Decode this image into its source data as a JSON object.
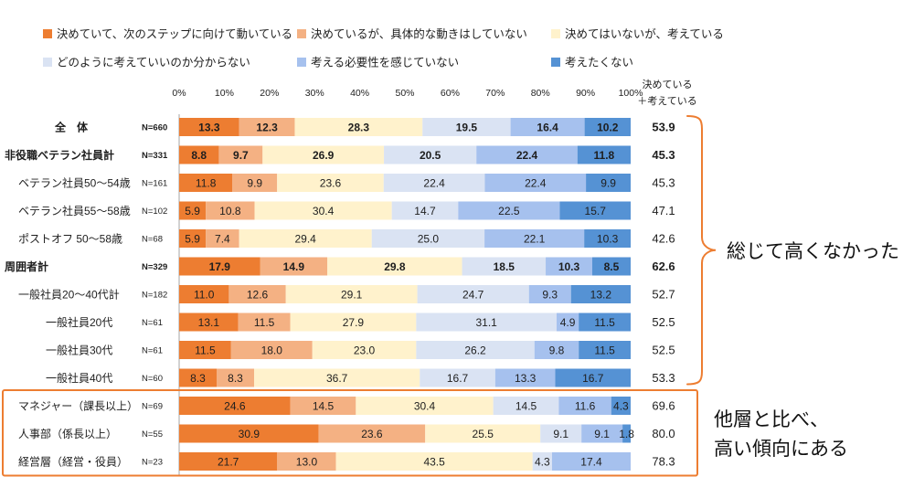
{
  "chart_data": {
    "type": "bar",
    "orientation": "horizontal",
    "stacking": "percent",
    "xlim": [
      0,
      100
    ],
    "x_tick_labels": [
      "0%",
      "10%",
      "20%",
      "30%",
      "40%",
      "50%",
      "60%",
      "70%",
      "80%",
      "90%",
      "100%"
    ],
    "grid": false,
    "legend_position": "top",
    "categories": [
      "全　体",
      "非役職ベテラン社員計",
      "ベテラン社員50～54歳",
      "ベテラン社員55～58歳",
      "ポストオフ 50～58歳",
      "周囲者計",
      "一般社員20～40代計",
      "一般社員20代",
      "一般社員30代",
      "一般社員40代",
      "マネジャー（課長以上）",
      "人事部（係長以上）",
      "経営層（経営・役員）"
    ],
    "sample_sizes": [
      "N=660",
      "N=331",
      "N=161",
      "N=102",
      "N=68",
      "N=329",
      "N=182",
      "N=61",
      "N=61",
      "N=60",
      "N=69",
      "N=55",
      "N=23"
    ],
    "emphasis": [
      true,
      true,
      false,
      false,
      false,
      true,
      false,
      false,
      false,
      false,
      false,
      false,
      false
    ],
    "series": [
      {
        "name": "決めていて、次のステップに向けて動いている",
        "color": "#ED7D31",
        "values": [
          13.3,
          8.8,
          11.8,
          5.9,
          5.9,
          17.9,
          11.0,
          13.1,
          11.5,
          8.3,
          24.6,
          30.9,
          21.7
        ]
      },
      {
        "name": "決めているが、具体的な動きはしていない",
        "color": "#F4B183",
        "values": [
          12.3,
          9.7,
          9.9,
          10.8,
          7.4,
          14.9,
          12.6,
          11.5,
          18.0,
          8.3,
          14.5,
          23.6,
          13.0
        ]
      },
      {
        "name": "決めてはいないが、考えている",
        "color": "#FFF2CC",
        "values": [
          28.3,
          26.9,
          23.6,
          30.4,
          29.4,
          29.8,
          29.1,
          27.9,
          23.0,
          36.7,
          30.4,
          25.5,
          43.5
        ]
      },
      {
        "name": "どのように考えていいのか分からない",
        "color": "#DAE3F3",
        "values": [
          19.5,
          20.5,
          22.4,
          14.7,
          25.0,
          18.5,
          24.7,
          31.1,
          26.2,
          16.7,
          14.5,
          9.1,
          4.3
        ]
      },
      {
        "name": "考える必要性を感じていない",
        "color": "#A6C1EE",
        "values": [
          16.4,
          22.4,
          22.4,
          22.5,
          22.1,
          10.3,
          9.3,
          4.9,
          9.8,
          13.3,
          11.6,
          9.1,
          17.4
        ]
      },
      {
        "name": "考えたくない",
        "color": "#5592D4",
        "values": [
          10.2,
          11.8,
          9.9,
          15.7,
          10.3,
          8.5,
          13.2,
          11.5,
          11.5,
          16.7,
          4.3,
          1.8,
          0
        ]
      }
    ],
    "total_column": {
      "header": [
        "決めている",
        "＋考えている"
      ],
      "values": [
        53.9,
        45.3,
        45.3,
        47.1,
        42.6,
        62.6,
        52.7,
        52.5,
        52.5,
        53.3,
        69.6,
        80.0,
        78.3
      ]
    },
    "annotations": {
      "brace_note": "総じて高くなかった",
      "box_note": [
        "他層と比べ、",
        "高い傾向にある"
      ],
      "highlight_color": "#ED7D31"
    }
  }
}
